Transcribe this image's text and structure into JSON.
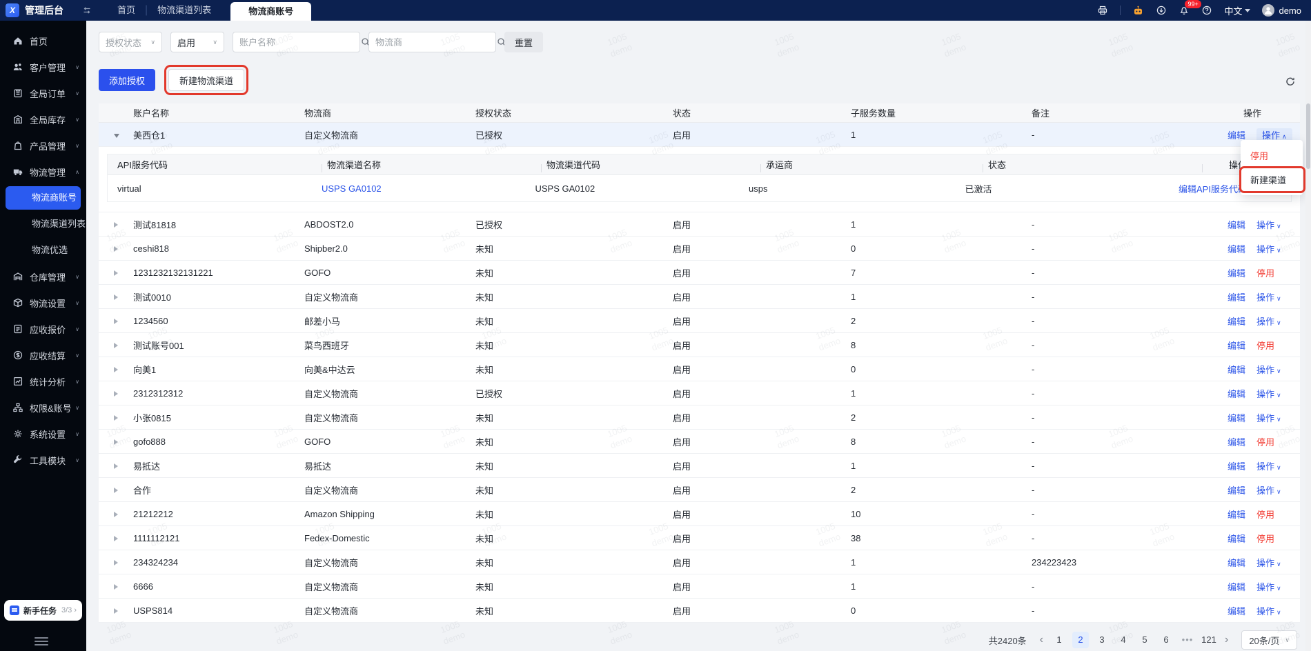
{
  "topbar": {
    "title": "管理后台",
    "tabs": [
      {
        "label": "首页",
        "active": false
      },
      {
        "label": "物流渠道列表",
        "active": false
      },
      {
        "label": "物流商账号",
        "active": true
      }
    ],
    "notification_badge": "99+",
    "language": "中文",
    "username": "demo"
  },
  "sidebar": {
    "items": [
      {
        "label": "首页",
        "icon": "home"
      },
      {
        "label": "客户管理",
        "icon": "customers",
        "caret": "down"
      },
      {
        "label": "全局订单",
        "icon": "orders",
        "caret": "down"
      },
      {
        "label": "全局库存",
        "icon": "inventory",
        "caret": "down"
      },
      {
        "label": "产品管理",
        "icon": "products",
        "caret": "down"
      },
      {
        "label": "物流管理",
        "icon": "logistics",
        "caret": "up"
      },
      {
        "label": "物流商账号",
        "sub": true,
        "active": true
      },
      {
        "label": "物流渠道列表",
        "sub": true
      },
      {
        "label": "物流优选",
        "sub": true
      },
      {
        "label": "仓库管理",
        "icon": "warehouse",
        "caret": "down"
      },
      {
        "label": "物流设置",
        "icon": "shipping-settings",
        "caret": "down"
      },
      {
        "label": "应收报价",
        "icon": "receivable-quote",
        "caret": "down"
      },
      {
        "label": "应收结算",
        "icon": "receivable-settlement",
        "caret": "down"
      },
      {
        "label": "统计分析",
        "icon": "statistics",
        "caret": "down"
      },
      {
        "label": "权限&账号",
        "icon": "permissions",
        "caret": "down"
      },
      {
        "label": "系统设置",
        "icon": "system-settings",
        "caret": "down"
      },
      {
        "label": "工具模块",
        "icon": "tools",
        "caret": "down"
      }
    ],
    "task": {
      "label": "新手任务",
      "progress": "3/3"
    }
  },
  "filters": {
    "auth_status_placeholder": "授权状态",
    "status_value": "启用",
    "account_placeholder": "账户名称",
    "provider_placeholder": "物流商",
    "reset_label": "重置"
  },
  "toolbar": {
    "add_auth": "添加授权",
    "new_channel": "新建物流渠道"
  },
  "labels": {
    "edit": "编辑",
    "menu": "操作",
    "disable": "停用"
  },
  "table": {
    "columns": [
      "账户名称",
      "物流商",
      "授权状态",
      "状态",
      "子服务数量",
      "备注",
      "操作"
    ],
    "rows": [
      {
        "name": "美西仓1",
        "provider": "自定义物流商",
        "auth": "已授权",
        "status": "启用",
        "sub_count": "1",
        "remark": "-",
        "action": "menu",
        "expanded": true
      },
      {
        "name": "测试81818",
        "provider": "ABDOST2.0",
        "auth": "已授权",
        "status": "启用",
        "sub_count": "1",
        "remark": "-",
        "action": "menu"
      },
      {
        "name": "ceshi818",
        "provider": "Shipber2.0",
        "auth": "未知",
        "status": "启用",
        "sub_count": "0",
        "remark": "-",
        "action": "menu"
      },
      {
        "name": "1231232132131221",
        "provider": "GOFO",
        "auth": "未知",
        "status": "启用",
        "sub_count": "7",
        "remark": "-",
        "action": "disable"
      },
      {
        "name": "测试0010",
        "provider": "自定义物流商",
        "auth": "未知",
        "status": "启用",
        "sub_count": "1",
        "remark": "-",
        "action": "menu"
      },
      {
        "name": "1234560",
        "provider": "邮差小马",
        "auth": "未知",
        "status": "启用",
        "sub_count": "2",
        "remark": "-",
        "action": "menu"
      },
      {
        "name": "测试账号001",
        "provider": "菜鸟西班牙",
        "auth": "未知",
        "status": "启用",
        "sub_count": "8",
        "remark": "-",
        "action": "disable"
      },
      {
        "name": "向美1",
        "provider": "向美&中达云",
        "auth": "未知",
        "status": "启用",
        "sub_count": "0",
        "remark": "-",
        "action": "menu"
      },
      {
        "name": "2312312312",
        "provider": "自定义物流商",
        "auth": "已授权",
        "status": "启用",
        "sub_count": "1",
        "remark": "-",
        "action": "menu"
      },
      {
        "name": "小张0815",
        "provider": "自定义物流商",
        "auth": "未知",
        "status": "启用",
        "sub_count": "2",
        "remark": "-",
        "action": "menu"
      },
      {
        "name": "gofo888",
        "provider": "GOFO",
        "auth": "未知",
        "status": "启用",
        "sub_count": "8",
        "remark": "-",
        "action": "disable"
      },
      {
        "name": "易抵达",
        "provider": "易抵达",
        "auth": "未知",
        "status": "启用",
        "sub_count": "1",
        "remark": "-",
        "action": "menu"
      },
      {
        "name": "合作",
        "provider": "自定义物流商",
        "auth": "未知",
        "status": "启用",
        "sub_count": "2",
        "remark": "-",
        "action": "menu"
      },
      {
        "name": "21212212",
        "provider": "Amazon Shipping",
        "auth": "未知",
        "status": "启用",
        "sub_count": "10",
        "remark": "-",
        "action": "disable"
      },
      {
        "name": "1111112121",
        "provider": "Fedex-Domestic",
        "auth": "未知",
        "status": "启用",
        "sub_count": "38",
        "remark": "-",
        "action": "disable"
      },
      {
        "name": "234324234",
        "provider": "自定义物流商",
        "auth": "未知",
        "status": "启用",
        "sub_count": "1",
        "remark": "234223423",
        "action": "menu"
      },
      {
        "name": "6666",
        "provider": "自定义物流商",
        "auth": "未知",
        "status": "启用",
        "sub_count": "1",
        "remark": "-",
        "action": "menu"
      },
      {
        "name": "USPS814",
        "provider": "自定义物流商",
        "auth": "未知",
        "status": "启用",
        "sub_count": "0",
        "remark": "-",
        "action": "menu"
      }
    ]
  },
  "detail": {
    "columns": [
      "API服务代码",
      "物流渠道名称",
      "物流渠道代码",
      "承运商",
      "状态",
      "操作"
    ],
    "row": {
      "api_code": "virtual",
      "channel_name": "USPS GA0102",
      "channel_code": "USPS GA0102",
      "carrier": "usps",
      "status": "已激活",
      "action": "编辑API服务代码"
    }
  },
  "row_menu": {
    "items": [
      {
        "label": "停用",
        "danger": true
      },
      {
        "label": "新建渠道",
        "annotated": true
      }
    ]
  },
  "pagination": {
    "total": "共2420条",
    "pages": [
      "1",
      "2",
      "3",
      "4",
      "5",
      "6",
      "•••",
      "121"
    ],
    "active": "2",
    "page_size": "20条/页"
  },
  "watermark": {
    "line1": "1005",
    "line2": "demo"
  }
}
